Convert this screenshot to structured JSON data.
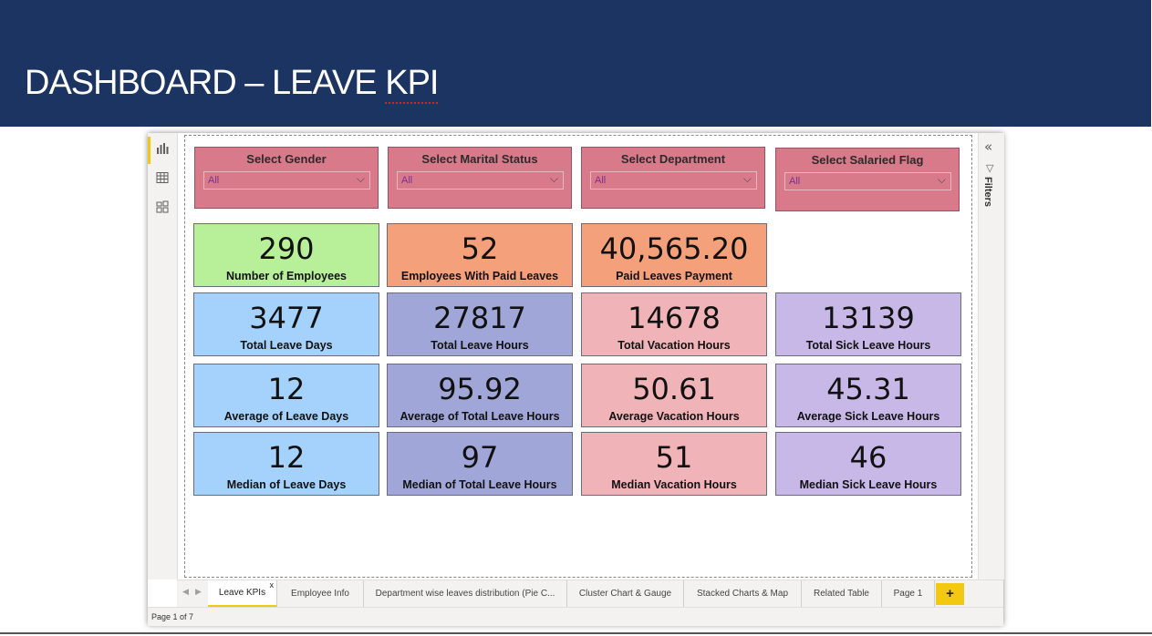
{
  "slide": {
    "title_prefix": "DASHBOARD – LEAVE ",
    "title_suffix": "KPI"
  },
  "colors": {
    "header_bg": "#1c3461",
    "slicer_bg": "#d97a8b",
    "kpi_green": "#b8f09a",
    "kpi_orange": "#f4a07a",
    "kpi_blue": "#a4d2fc",
    "kpi_slate": "#a0a6d8",
    "kpi_pink": "#f0b3b8",
    "kpi_lavender": "#c7b8e8",
    "accent": "#f2c811"
  },
  "left_rail": {
    "icons": [
      "report-view-icon",
      "data-view-icon",
      "model-view-icon"
    ]
  },
  "right_pane": {
    "collapse_icon": "double-chevron-left-icon",
    "filter_icon": "funnel-icon",
    "label": "Filters"
  },
  "slicers": [
    {
      "title": "Select Gender",
      "value": "All"
    },
    {
      "title": "Select Marital Status",
      "value": "All"
    },
    {
      "title": "Select Department",
      "value": "All"
    },
    {
      "title": "Select Salaried Flag",
      "value": "All"
    }
  ],
  "kpis": {
    "row1": [
      {
        "value": "290",
        "label": "Number of Employees"
      },
      {
        "value": "52",
        "label": "Employees With Paid Leaves"
      },
      {
        "value": "40,565.20",
        "label": "Paid Leaves Payment"
      }
    ],
    "row2": [
      {
        "value": "3477",
        "label": "Total Leave Days"
      },
      {
        "value": "27817",
        "label": "Total Leave Hours"
      },
      {
        "value": "14678",
        "label": "Total Vacation Hours"
      },
      {
        "value": "13139",
        "label": "Total Sick Leave Hours"
      }
    ],
    "row3": [
      {
        "value": "12",
        "label": "Average of Leave Days"
      },
      {
        "value": "95.92",
        "label": "Average of Total Leave Hours"
      },
      {
        "value": "50.61",
        "label": "Average Vacation Hours"
      },
      {
        "value": "45.31",
        "label": "Average Sick Leave Hours"
      }
    ],
    "row4": [
      {
        "value": "12",
        "label": "Median of Leave Days"
      },
      {
        "value": "97",
        "label": "Median of Total Leave Hours"
      },
      {
        "value": "51",
        "label": "Median Vacation Hours"
      },
      {
        "value": "46",
        "label": "Median Sick Leave Hours"
      }
    ]
  },
  "tabs": [
    {
      "label": "Leave KPIs",
      "active": true
    },
    {
      "label": "Employee Info"
    },
    {
      "label": "Department wise leaves distribution (Pie C..."
    },
    {
      "label": "Cluster Chart & Gauge"
    },
    {
      "label": "Stacked Charts & Map"
    },
    {
      "label": "Related Table"
    },
    {
      "label": "Page 1"
    }
  ],
  "tab_close": "x",
  "tab_add": "+",
  "status": {
    "page_indicator": "Page 1 of 7"
  }
}
